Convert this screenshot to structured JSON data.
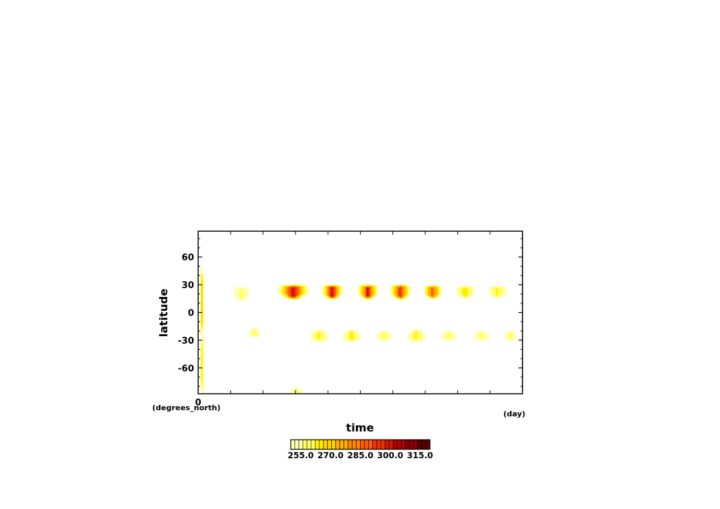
{
  "chart_data": {
    "type": "heatmap",
    "title": "",
    "xlabel": "time",
    "ylabel": "latitude",
    "x_unit": "(day)",
    "y_unit": "(degrees_north)",
    "x_tick_labels": [
      "0"
    ],
    "y_ticks": [
      60,
      30,
      0,
      -30,
      -60
    ],
    "y_tick_labels": [
      "60",
      "30",
      "0",
      "-30",
      "-60"
    ],
    "ylim": [
      -88,
      88
    ],
    "colorbar": {
      "tick_labels": [
        "255.0",
        "270.0",
        "285.0",
        "300.0",
        "315.0"
      ],
      "tick_values": [
        255,
        270,
        285,
        300,
        315
      ],
      "range": [
        250,
        320
      ],
      "colors": [
        "#ffffb2",
        "#ffff66",
        "#ffee00",
        "#ffd000",
        "#ffae00",
        "#ff8800",
        "#ff5a00",
        "#f03200",
        "#d41400",
        "#b00000",
        "#880000",
        "#5a0000"
      ]
    },
    "features": [
      {
        "x": 0.01,
        "lat": 10,
        "peak": 272,
        "width": 0.008,
        "height": 40
      },
      {
        "x": 0.01,
        "lat": -55,
        "peak": 265,
        "width": 0.008,
        "height": 35
      },
      {
        "x": 0.13,
        "lat": 20,
        "peak": 258,
        "width": 0.025,
        "height": 8
      },
      {
        "x": 0.29,
        "lat": 22,
        "peak": 300,
        "width": 0.05,
        "height": 9
      },
      {
        "x": 0.41,
        "lat": 22,
        "peak": 300,
        "width": 0.035,
        "height": 9
      },
      {
        "x": 0.52,
        "lat": 22,
        "peak": 298,
        "width": 0.035,
        "height": 9
      },
      {
        "x": 0.62,
        "lat": 22,
        "peak": 296,
        "width": 0.035,
        "height": 9
      },
      {
        "x": 0.72,
        "lat": 22,
        "peak": 290,
        "width": 0.03,
        "height": 8
      },
      {
        "x": 0.82,
        "lat": 22,
        "peak": 266,
        "width": 0.03,
        "height": 7
      },
      {
        "x": 0.92,
        "lat": 22,
        "peak": 262,
        "width": 0.03,
        "height": 7
      },
      {
        "x": 0.17,
        "lat": -22,
        "peak": 260,
        "width": 0.02,
        "height": 5
      },
      {
        "x": 0.37,
        "lat": -25,
        "peak": 262,
        "width": 0.03,
        "height": 7
      },
      {
        "x": 0.47,
        "lat": -25,
        "peak": 264,
        "width": 0.03,
        "height": 7
      },
      {
        "x": 0.57,
        "lat": -25,
        "peak": 260,
        "width": 0.025,
        "height": 6
      },
      {
        "x": 0.67,
        "lat": -25,
        "peak": 262,
        "width": 0.03,
        "height": 7
      },
      {
        "x": 0.77,
        "lat": -25,
        "peak": 258,
        "width": 0.025,
        "height": 6
      },
      {
        "x": 0.87,
        "lat": -25,
        "peak": 258,
        "width": 0.025,
        "height": 6
      },
      {
        "x": 0.96,
        "lat": -25,
        "peak": 258,
        "width": 0.02,
        "height": 6
      },
      {
        "x": 0.3,
        "lat": -85,
        "peak": 258,
        "width": 0.02,
        "height": 4
      }
    ]
  }
}
